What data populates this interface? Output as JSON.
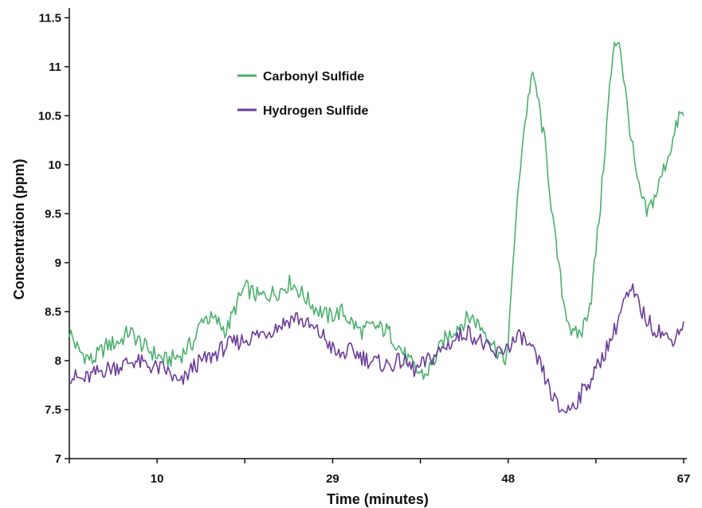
{
  "chart_data": {
    "type": "line",
    "title": "",
    "xlabel": "Time (minutes)",
    "ylabel": "Concentration (ppm)",
    "xlim": [
      0.5,
      67
    ],
    "ylim": [
      7,
      11.6
    ],
    "x_ticks": [
      {
        "value": 10,
        "label": "10"
      },
      {
        "value": 29,
        "label": "29"
      },
      {
        "value": 48,
        "label": "48"
      },
      {
        "value": 67,
        "label": "67"
      }
    ],
    "x_minor_ticks": [
      0.5,
      19.5,
      38.5,
      57.5
    ],
    "y_ticks": [
      {
        "value": 7,
        "label": "7"
      },
      {
        "value": 7.5,
        "label": "7.5"
      },
      {
        "value": 8,
        "label": "8"
      },
      {
        "value": 8.5,
        "label": "8.5"
      },
      {
        "value": 9,
        "label": "9"
      },
      {
        "value": 9.5,
        "label": "9.5"
      },
      {
        "value": 10,
        "label": "10"
      },
      {
        "value": 10.5,
        "label": "10.5"
      },
      {
        "value": 11,
        "label": "11"
      },
      {
        "value": 11.5,
        "label": "11.5"
      }
    ],
    "grid": false,
    "legend_position": "top-center",
    "series": [
      {
        "name": "Carbonyl Sulfide",
        "color": "#4caf6e",
        "x": [
          0.5,
          1.5,
          3,
          4.5,
          6,
          7,
          8.5,
          10,
          11,
          12.5,
          14,
          15,
          16.5,
          17.5,
          18.5,
          19.5,
          21,
          23,
          24.5,
          26,
          27,
          28.5,
          30,
          32,
          33.5,
          35,
          36.5,
          38,
          39,
          40,
          41,
          42.5,
          44,
          45.5,
          46.5,
          47.5,
          48,
          48.5,
          49.5,
          50.5,
          51,
          52,
          53,
          54,
          55,
          56,
          57,
          58,
          59,
          59.5,
          60,
          61,
          62,
          63,
          64,
          65,
          66,
          66.5,
          67
        ],
        "y": [
          8.3,
          8.1,
          8.0,
          8.15,
          8.2,
          8.3,
          8.15,
          8.05,
          8.0,
          8.05,
          8.2,
          8.45,
          8.4,
          8.3,
          8.55,
          8.75,
          8.65,
          8.7,
          8.8,
          8.65,
          8.55,
          8.45,
          8.5,
          8.3,
          8.35,
          8.3,
          8.1,
          7.9,
          7.85,
          8.0,
          8.2,
          8.35,
          8.45,
          8.3,
          8.15,
          8.0,
          8.1,
          9.0,
          10.2,
          10.9,
          10.8,
          10.2,
          9.3,
          8.6,
          8.25,
          8.3,
          8.65,
          9.6,
          10.8,
          11.2,
          11.3,
          10.5,
          9.8,
          9.5,
          9.7,
          10.0,
          10.3,
          10.5,
          10.5
        ]
      },
      {
        "name": "Hydrogen Sulfide",
        "color": "#6a3d9a",
        "x": [
          0.5,
          2,
          4,
          6,
          7.5,
          9,
          11,
          12.5,
          14,
          16,
          17.5,
          19,
          20.5,
          22,
          24,
          25,
          26.5,
          28,
          29.5,
          31,
          33,
          35,
          36.5,
          38,
          40,
          42,
          43.5,
          45,
          46.5,
          48,
          49.5,
          50.5,
          51.5,
          52.5,
          53.5,
          54.5,
          55.5,
          56.5,
          57.5,
          58.5,
          59.5,
          60.5,
          61.5,
          62.5,
          63.5,
          64.5,
          65.5,
          66.5,
          67
        ],
        "y": [
          7.85,
          7.8,
          7.9,
          7.95,
          8.0,
          7.95,
          7.9,
          7.75,
          7.95,
          8.05,
          8.15,
          8.2,
          8.25,
          8.3,
          8.4,
          8.45,
          8.35,
          8.25,
          8.05,
          8.1,
          8.0,
          7.95,
          8.0,
          7.9,
          8.05,
          8.2,
          8.3,
          8.2,
          8.05,
          8.15,
          8.25,
          8.1,
          7.95,
          7.7,
          7.5,
          7.5,
          7.6,
          7.75,
          7.9,
          8.1,
          8.3,
          8.6,
          8.7,
          8.5,
          8.35,
          8.3,
          8.2,
          8.3,
          8.4
        ]
      }
    ]
  }
}
